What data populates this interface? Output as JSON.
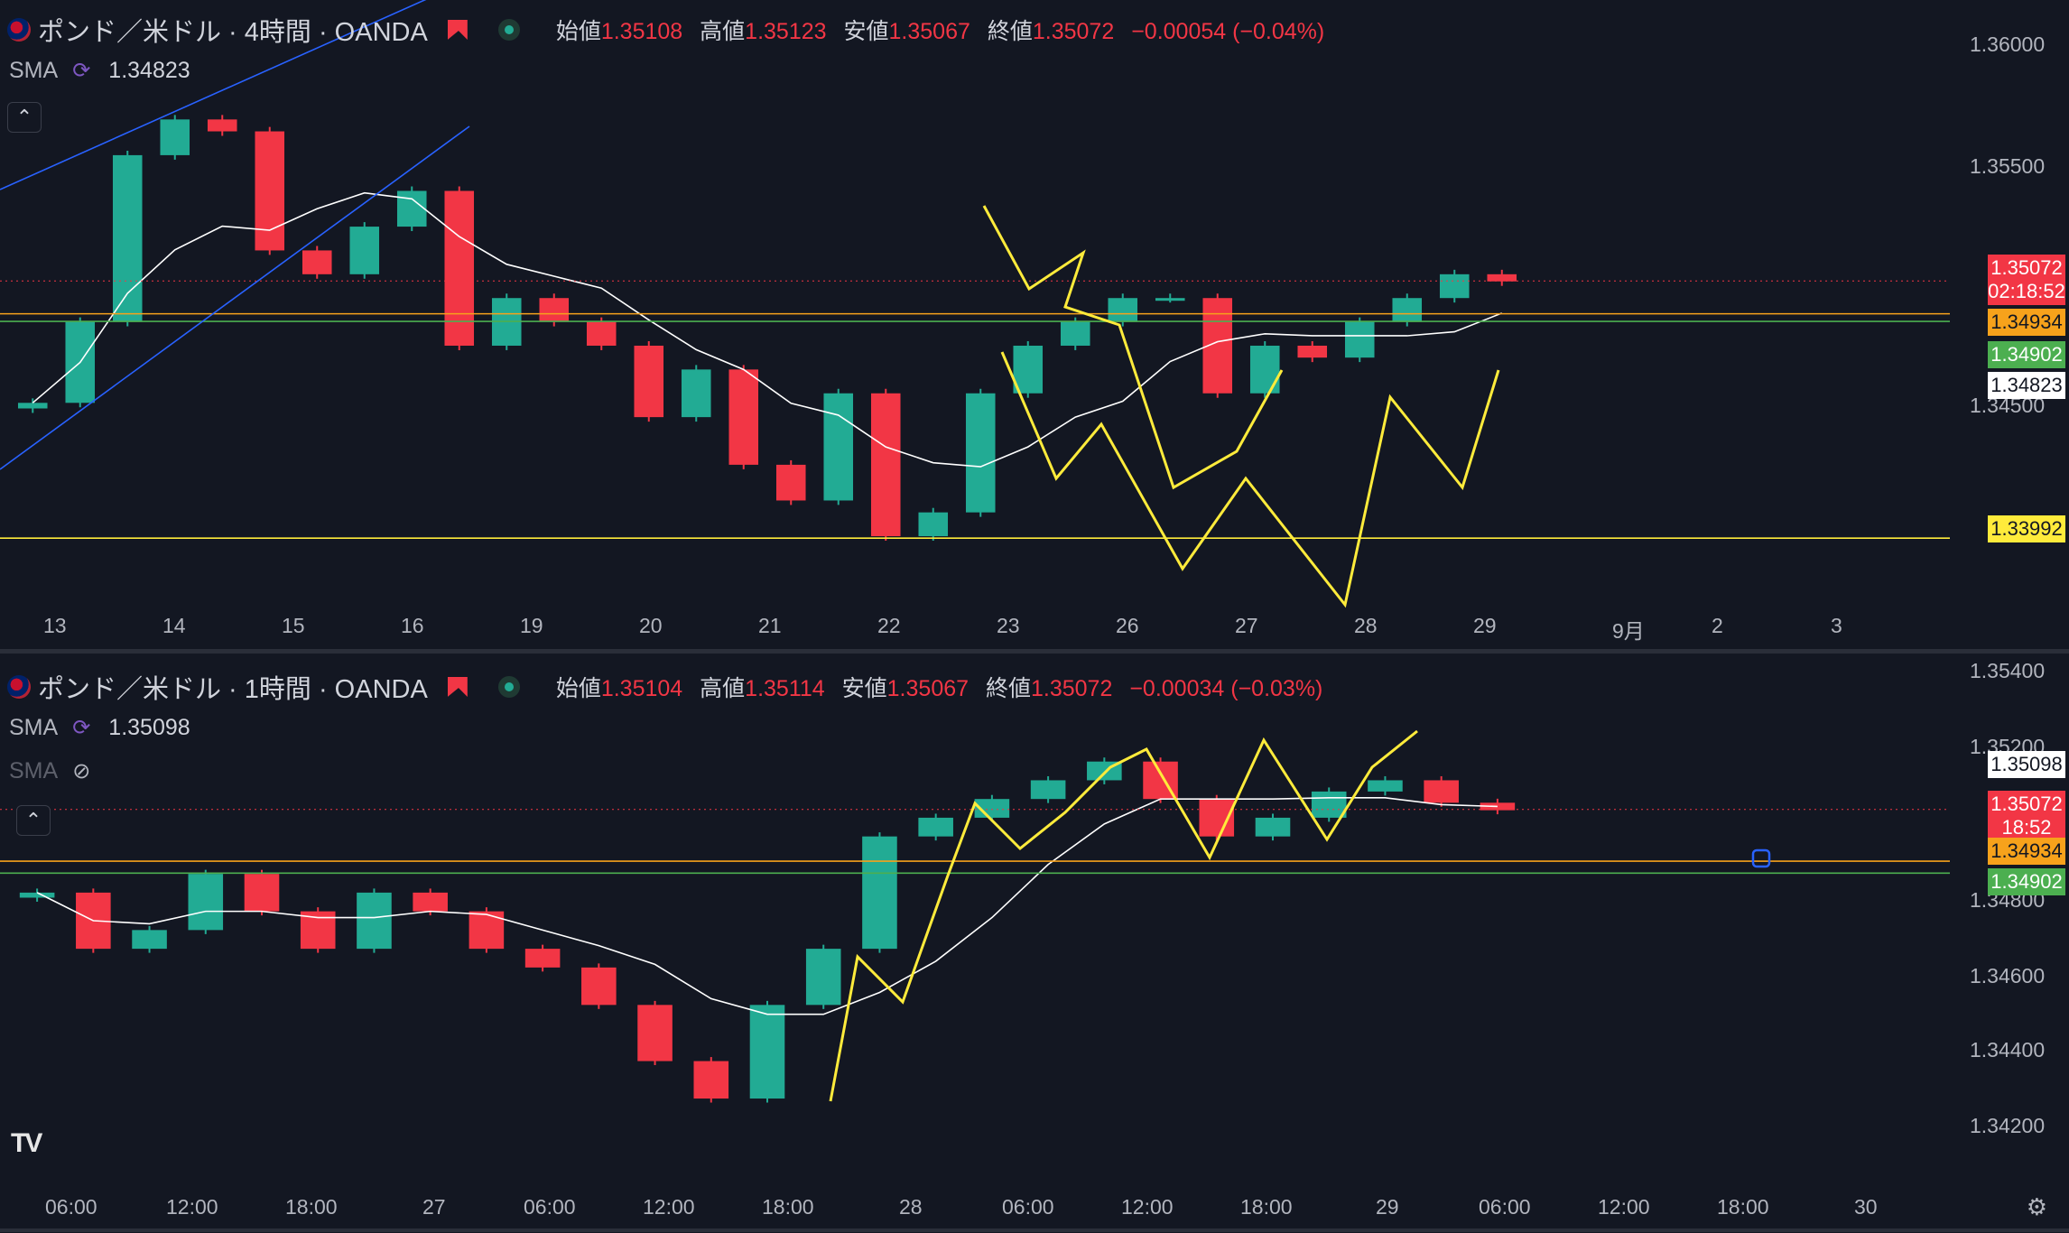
{
  "panels": [
    {
      "symbol_title": "ポンド／米ドル · 4時間 · OANDA",
      "ohlc": {
        "open_label": "始値",
        "open": "1.35108",
        "high_label": "高値",
        "high": "1.35123",
        "low_label": "安値",
        "low": "1.35067",
        "close_label": "終値",
        "close": "1.35072",
        "change": "−0.00054 (−0.04%)"
      },
      "sma_label": "SMA",
      "sma_value": "1.34823",
      "price_axis": [
        "1.36000",
        "1.35500",
        "1.34500"
      ],
      "time_axis": [
        "13",
        "14",
        "15",
        "16",
        "19",
        "20",
        "21",
        "22",
        "23",
        "26",
        "27",
        "28",
        "29",
        "9月",
        "2",
        "3"
      ],
      "price_tags": [
        {
          "text": "1.35072",
          "sub": "02:18:52",
          "color": "#f23645",
          "text_color": "#ffffff"
        },
        {
          "text": "1.34934",
          "color": "#f7a21b",
          "text_color": "#131722"
        },
        {
          "text": "1.34902",
          "color": "#4caf50",
          "text_color": "#ffffff"
        },
        {
          "text": "1.34823",
          "color": "#ffffff",
          "text_color": "#131722"
        },
        {
          "text": "1.33992",
          "color": "#ffeb3b",
          "text_color": "#131722"
        }
      ]
    },
    {
      "symbol_title": "ポンド／米ドル · 1時間 · OANDA",
      "ohlc": {
        "open_label": "始値",
        "open": "1.35104",
        "high_label": "高値",
        "high": "1.35114",
        "low_label": "安値",
        "low": "1.35067",
        "close_label": "終値",
        "close": "1.35072",
        "change": "−0.00034 (−0.03%)"
      },
      "sma_label": "SMA",
      "sma_value": "1.35098",
      "sma2_label": "SMA",
      "price_axis": [
        "1.35400",
        "1.35200",
        "1.34800",
        "1.34600",
        "1.34400",
        "1.34200"
      ],
      "time_axis": [
        "06:00",
        "12:00",
        "18:00",
        "27",
        "06:00",
        "12:00",
        "18:00",
        "28",
        "06:00",
        "12:00",
        "18:00",
        "29",
        "06:00",
        "12:00",
        "18:00",
        "30"
      ],
      "price_tags": [
        {
          "text": "1.35098",
          "color": "#ffffff",
          "text_color": "#131722"
        },
        {
          "text": "1.35072",
          "sub": "18:52",
          "color": "#f23645",
          "text_color": "#ffffff"
        },
        {
          "text": "1.34934",
          "color": "#f7a21b",
          "text_color": "#131722"
        },
        {
          "text": "1.34902",
          "color": "#4caf50",
          "text_color": "#ffffff"
        }
      ]
    }
  ],
  "logo": "TV",
  "colors": {
    "up": "#22ab94",
    "down": "#f23645",
    "sma": "#ffffff",
    "drawing": "#ffeb3b",
    "channel": "#2962ff",
    "level_orange": "#f7a21b",
    "level_green": "#4caf50",
    "level_yellow": "#ffeb3b"
  },
  "chart_data": [
    {
      "type": "candlestick",
      "title": "ポンド／米ドル · 4時間 · OANDA",
      "ylim": [
        1.3375,
        1.361
      ],
      "x": [
        "13",
        "14",
        "15",
        "16",
        "19",
        "20",
        "21",
        "22",
        "23",
        "26",
        "27",
        "28",
        "29"
      ],
      "close_series": [
        1.3456,
        1.349,
        1.356,
        1.3575,
        1.357,
        1.352,
        1.351,
        1.353,
        1.3545,
        1.348,
        1.35,
        1.349,
        1.348,
        1.345,
        1.347,
        1.343,
        1.3415,
        1.346,
        1.34,
        1.341,
        1.346,
        1.348,
        1.349,
        1.35,
        1.35,
        1.346,
        1.348,
        1.3475,
        1.349,
        1.35,
        1.351,
        1.3507
      ],
      "sma": 1.34823,
      "levels": [
        1.34934,
        1.34902,
        1.33992
      ],
      "last": 1.35072
    },
    {
      "type": "candlestick",
      "title": "ポンド／米ドル · 1時間 · OANDA",
      "ylim": [
        1.341,
        1.3545
      ],
      "x": [
        "06:00",
        "12:00",
        "18:00",
        "27",
        "06:00",
        "12:00",
        "18:00",
        "28",
        "06:00",
        "12:00",
        "18:00",
        "29",
        "06:00",
        "12:00",
        "18:00",
        "30"
      ],
      "close_series": [
        1.3485,
        1.347,
        1.3475,
        1.349,
        1.348,
        1.347,
        1.3485,
        1.348,
        1.347,
        1.3465,
        1.3455,
        1.344,
        1.343,
        1.3455,
        1.347,
        1.35,
        1.3505,
        1.351,
        1.3515,
        1.352,
        1.351,
        1.35,
        1.3505,
        1.3512,
        1.3515,
        1.3509,
        1.3507
      ],
      "sma": 1.35098,
      "levels": [
        1.34934,
        1.34902
      ],
      "last": 1.35072
    }
  ]
}
